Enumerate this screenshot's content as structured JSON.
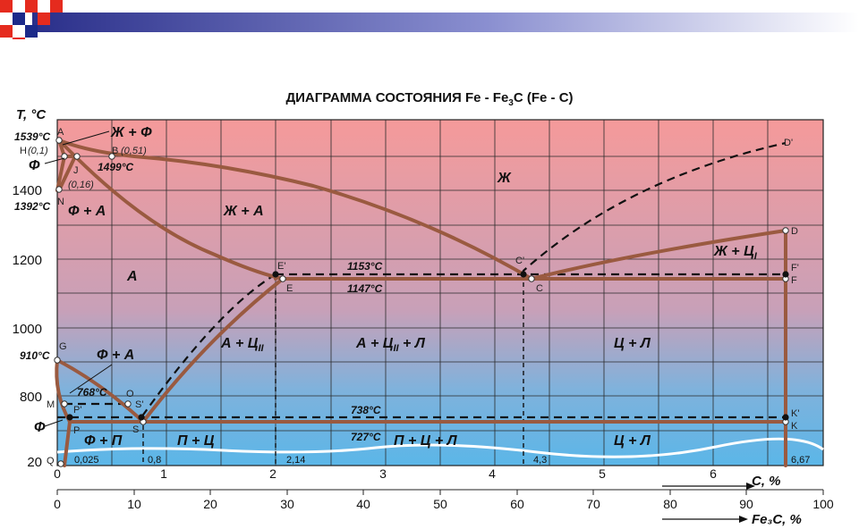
{
  "title": "ДИАГРАММА СОСТОЯНИЯ Fe - Fe3C (Fe - C)",
  "title_parts": {
    "pre": "ДИАГРАММА СОСТОЯНИЯ Fe - Fe",
    "sub": "3",
    "post": "C (Fe - C)"
  },
  "colors": {
    "liquid_band": "#f59a9a",
    "solid_band": "#5bb6e8",
    "phase_line": "#9a5a40",
    "dashed_line": "#111111",
    "grid": "#2a2a2a"
  },
  "axes": {
    "y_title": "T, °C",
    "y_ticks": [
      "1400",
      "1200",
      "1000",
      "800",
      "20"
    ],
    "c_title": "C, %",
    "c_ticks": [
      "0",
      "1",
      "2",
      "3",
      "4",
      "5",
      "6"
    ],
    "fe3c_title": "Fe₃C, %",
    "fe3c_ticks": [
      "0",
      "10",
      "20",
      "30",
      "40",
      "50",
      "60",
      "70",
      "80",
      "90",
      "100"
    ]
  },
  "temperatures": {
    "t1539": "1539°C",
    "t1499": "1499°C",
    "t1392": "1392°C",
    "t910": "910°C",
    "t768": "768°C",
    "t1153": "1153°C",
    "t1147": "1147°C",
    "t738": "738°C",
    "t727": "727°C"
  },
  "points": {
    "A": "A",
    "H": "H",
    "H_val": "(0,1)",
    "B": "B",
    "B_val": "(0,51)",
    "J": "J",
    "J_val": "(0,16)",
    "N": "N",
    "E1": "E'",
    "E": "E",
    "C1": "C'",
    "C": "C",
    "D1": "D'",
    "D": "D",
    "F1": "F'",
    "F": "F",
    "G": "G",
    "O": "O",
    "M": "M",
    "P1": "P'",
    "P": "P",
    "S1": "S'",
    "S": "S",
    "K1": "K'",
    "K": "K",
    "Q": "Q"
  },
  "phases": {
    "liquid_ferrite": "Ж + Ф",
    "ferrite_top": "Ф",
    "ferrite_austenite_top": "Ф + А",
    "liquid": "Ж",
    "liquid_austenite": "Ж + А",
    "austenite": "А",
    "liquid_cementite": "Ж + Ц",
    "cem_sub_I": "I",
    "ferrite_austenite": "Ф + А",
    "austenite_cem": "А + Ц",
    "cem_sub_II": "II",
    "austenite_cem_ledeb": "А + Ц",
    "ledeburite_suffix": " + Л",
    "cem_ledeburite": "Ц + Л",
    "ferrite_low": "Ф",
    "ferrite_pearlite": "Ф + П",
    "pearlite_cem": "П + Ц",
    "pearlite_cem_ledeb": "П + Ц + Л",
    "cem_ledeburite_low": "Ц + Л"
  },
  "compositions": {
    "c0025": "0,025",
    "c08": "0,8",
    "c214": "2,14",
    "c43": "4,3",
    "c667": "6,67"
  }
}
